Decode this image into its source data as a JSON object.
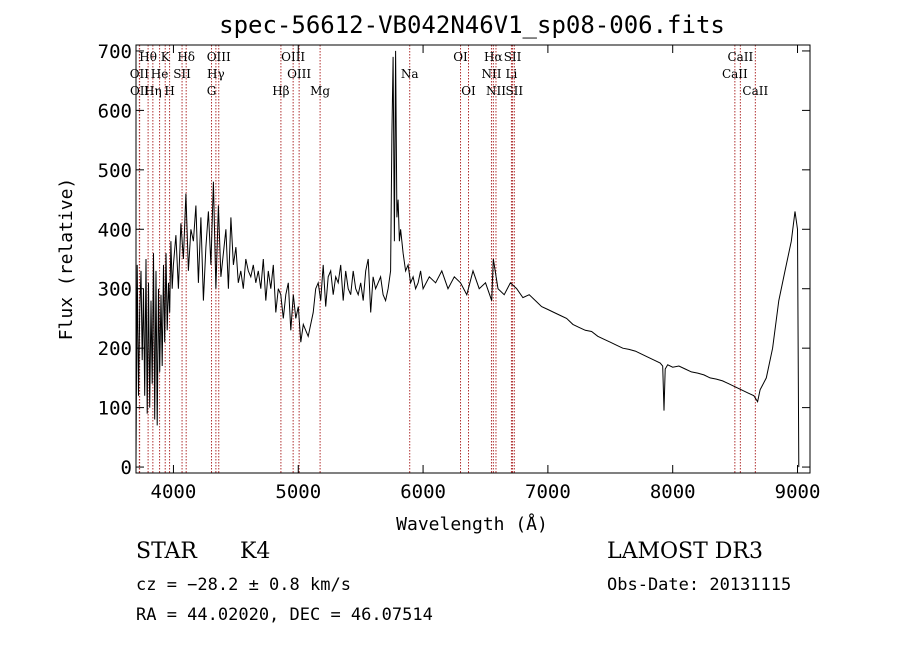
{
  "chart_data": {
    "type": "line",
    "title": "spec-56612-VB042N46V1_sp08-006.fits",
    "xlabel": "Wavelength (Å)",
    "ylabel": "Flux (relative)",
    "xlim": [
      3700,
      9100
    ],
    "ylim": [
      -10,
      710
    ],
    "x_ticks": [
      4000,
      5000,
      6000,
      7000,
      8000,
      9000
    ],
    "y_ticks": [
      0,
      100,
      200,
      300,
      400,
      500,
      600,
      700
    ],
    "series": [
      {
        "name": "flux",
        "x": [
          3700,
          3710,
          3720,
          3730,
          3740,
          3750,
          3760,
          3770,
          3780,
          3790,
          3800,
          3810,
          3820,
          3830,
          3840,
          3850,
          3860,
          3870,
          3880,
          3890,
          3900,
          3910,
          3920,
          3930,
          3940,
          3950,
          3960,
          3970,
          3980,
          3990,
          4000,
          4020,
          4040,
          4060,
          4080,
          4100,
          4120,
          4140,
          4160,
          4180,
          4200,
          4220,
          4240,
          4260,
          4280,
          4300,
          4320,
          4340,
          4360,
          4380,
          4400,
          4420,
          4440,
          4460,
          4480,
          4500,
          4520,
          4540,
          4560,
          4580,
          4600,
          4620,
          4640,
          4660,
          4680,
          4700,
          4720,
          4740,
          4760,
          4780,
          4800,
          4820,
          4840,
          4860,
          4880,
          4900,
          4920,
          4940,
          4960,
          4980,
          5000,
          5020,
          5040,
          5060,
          5080,
          5100,
          5120,
          5140,
          5160,
          5180,
          5200,
          5220,
          5240,
          5260,
          5280,
          5300,
          5320,
          5340,
          5360,
          5380,
          5400,
          5420,
          5440,
          5460,
          5480,
          5500,
          5520,
          5540,
          5560,
          5580,
          5600,
          5620,
          5640,
          5660,
          5680,
          5700,
          5720,
          5740,
          5750,
          5760,
          5770,
          5780,
          5790,
          5800,
          5810,
          5820,
          5840,
          5860,
          5880,
          5900,
          5920,
          5940,
          5960,
          5980,
          6000,
          6050,
          6100,
          6150,
          6200,
          6250,
          6300,
          6350,
          6400,
          6450,
          6500,
          6550,
          6563,
          6600,
          6650,
          6700,
          6750,
          6800,
          6850,
          6900,
          6950,
          7000,
          7050,
          7100,
          7150,
          7200,
          7250,
          7300,
          7350,
          7400,
          7450,
          7500,
          7550,
          7600,
          7650,
          7700,
          7750,
          7800,
          7850,
          7900,
          7920,
          7930,
          7940,
          7960,
          8000,
          8050,
          8100,
          8150,
          8200,
          8250,
          8300,
          8350,
          8400,
          8450,
          8500,
          8550,
          8600,
          8650,
          8680,
          8700,
          8750,
          8800,
          8850,
          8900,
          8950,
          8980,
          9000,
          9010
        ],
        "values": [
          10,
          340,
          120,
          260,
          330,
          180,
          300,
          120,
          350,
          90,
          310,
          100,
          280,
          140,
          360,
          80,
          330,
          70,
          300,
          160,
          290,
          170,
          340,
          210,
          360,
          230,
          310,
          260,
          380,
          300,
          340,
          390,
          300,
          410,
          350,
          460,
          330,
          400,
          380,
          440,
          310,
          420,
          280,
          370,
          430,
          340,
          480,
          300,
          440,
          320,
          360,
          400,
          300,
          420,
          340,
          370,
          310,
          330,
          300,
          350,
          330,
          320,
          340,
          310,
          330,
          300,
          350,
          280,
          330,
          300,
          340,
          260,
          300,
          290,
          250,
          290,
          310,
          230,
          290,
          250,
          270,
          210,
          240,
          230,
          220,
          240,
          260,
          300,
          310,
          280,
          340,
          270,
          320,
          330,
          290,
          320,
          310,
          340,
          280,
          330,
          300,
          290,
          330,
          300,
          290,
          310,
          280,
          330,
          350,
          260,
          320,
          300,
          310,
          320,
          290,
          280,
          300,
          330,
          560,
          690,
          380,
          700,
          420,
          450,
          380,
          400,
          360,
          330,
          340,
          310,
          320,
          300,
          310,
          330,
          300,
          320,
          310,
          330,
          300,
          320,
          310,
          290,
          330,
          300,
          310,
          280,
          350,
          300,
          290,
          310,
          300,
          285,
          290,
          280,
          270,
          265,
          260,
          255,
          250,
          240,
          235,
          230,
          228,
          220,
          215,
          210,
          205,
          200,
          198,
          195,
          190,
          185,
          180,
          175,
          170,
          95,
          165,
          172,
          168,
          170,
          165,
          160,
          158,
          155,
          150,
          148,
          145,
          140,
          135,
          130,
          125,
          120,
          110,
          130,
          150,
          200,
          280,
          330,
          380,
          430,
          400,
          0
        ]
      }
    ],
    "lines_row1": [
      {
        "label": "Hθ",
        "x": 3797
      },
      {
        "label": "K",
        "x": 3934
      },
      {
        "label": "Hδ",
        "x": 4102
      },
      {
        "label": "OIII",
        "x": 4363
      },
      {
        "label": "OIII",
        "x": 4959
      },
      {
        "label": "OI",
        "x": 6300
      },
      {
        "label": "Hα",
        "x": 6563
      },
      {
        "label": "SII",
        "x": 6717
      },
      {
        "label": "CaII",
        "x": 8542
      }
    ],
    "lines_row2": [
      {
        "label": "OII",
        "x": 3727
      },
      {
        "label": "He",
        "x": 3889
      },
      {
        "label": "SII",
        "x": 4069
      },
      {
        "label": "Hγ",
        "x": 4340
      },
      {
        "label": "OIII",
        "x": 5007
      },
      {
        "label": "Na",
        "x": 5893
      },
      {
        "label": "NII",
        "x": 6548
      },
      {
        "label": "Li",
        "x": 6708
      },
      {
        "label": "CaII",
        "x": 8498
      }
    ],
    "lines_row3": [
      {
        "label": "OII",
        "x": 3729
      },
      {
        "label": "Hη",
        "x": 3835
      },
      {
        "label": "H",
        "x": 3969
      },
      {
        "label": "G",
        "x": 4305
      },
      {
        "label": "Hβ",
        "x": 4861
      },
      {
        "label": "Mg",
        "x": 5175
      },
      {
        "label": "OI",
        "x": 6364
      },
      {
        "label": "NII",
        "x": 6584
      },
      {
        "label": "SII",
        "x": 6731
      },
      {
        "label": "CaII",
        "x": 8662
      }
    ]
  },
  "info": {
    "class": "STAR",
    "subclass": "K4",
    "survey": "LAMOST DR3",
    "cz": "cz = −28.2 ± 0.8 km/s",
    "obs_date": "Obs-Date: 20131115",
    "radec": "RA =  44.02020, DEC =  46.07514"
  }
}
